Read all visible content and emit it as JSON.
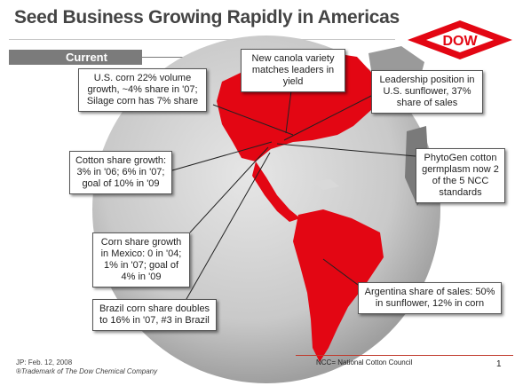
{
  "slide": {
    "title": "Seed Business Growing Rapidly in Americas",
    "tab_label": "Current",
    "logo_text": "DOW"
  },
  "callouts": [
    {
      "id": "us-corn",
      "text": "U.S. corn 22% volume growth, ~4% share in '07; Silage corn has 7% share"
    },
    {
      "id": "canola",
      "text": "New canola variety matches leaders in yield"
    },
    {
      "id": "sunflower",
      "text": "Leadership position in U.S. sunflower, 37% share of sales"
    },
    {
      "id": "cotton-share",
      "text": "Cotton share growth: 3% in '06; 6% in '07; goal of 10% in '09"
    },
    {
      "id": "phytogen",
      "text": "PhytoGen cotton germplasm now 2 of the 5 NCC standards"
    },
    {
      "id": "mexico-corn",
      "text": "Corn share growth in Mexico: 0 in '04; 1% in '07; goal of 4% in '09"
    },
    {
      "id": "argentina",
      "text": "Argentina share of sales: 50% in sunflower, 12% in corn"
    },
    {
      "id": "brazil-corn",
      "text": "Brazil corn share doubles to 16% in '07, #3 in Brazil"
    }
  ],
  "footer": {
    "date": "JP: Feb. 12, 2008",
    "trademark": "®Trademark of The Dow Chemical Company",
    "ncc_note": "NCC= National Cotton Council",
    "page_number": "1"
  },
  "colors": {
    "highlight_red": "#e30613",
    "globe_gray": "#b5b5b5",
    "title_gray": "#444444"
  }
}
